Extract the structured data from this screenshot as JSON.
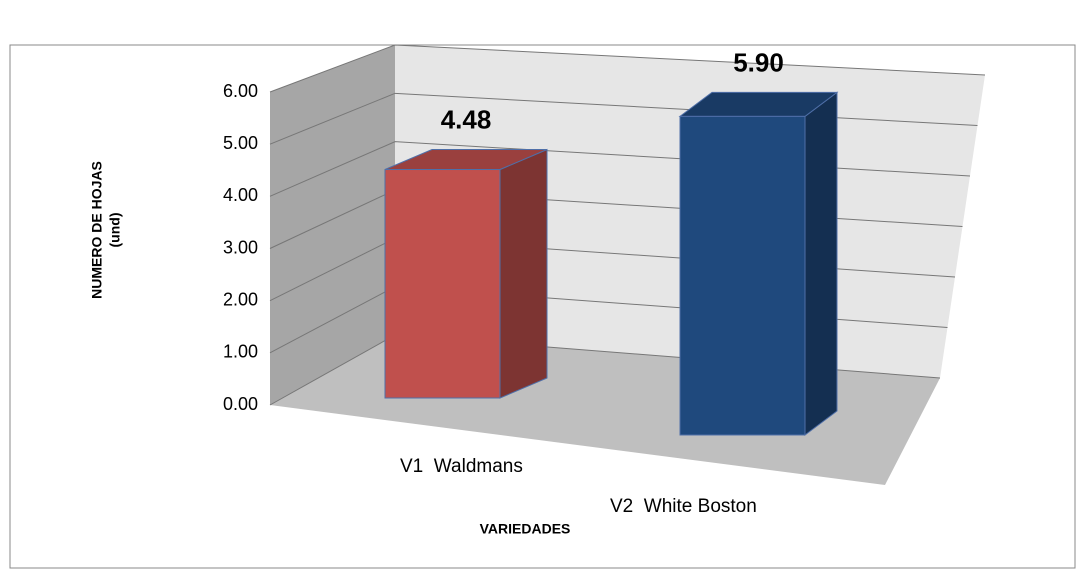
{
  "chart_data": {
    "type": "bar3d",
    "categories": [
      "V1  Waldmans",
      "V2  White Boston"
    ],
    "values": [
      4.48,
      5.9
    ],
    "value_labels": [
      "4.48",
      "5.90"
    ],
    "colors": [
      "#c0504d",
      "#1f497d"
    ],
    "ylim": [
      0,
      6
    ],
    "yticks": [
      {
        "value": 0,
        "label": "0.00"
      },
      {
        "value": 1,
        "label": "1.00"
      },
      {
        "value": 2,
        "label": "2.00"
      },
      {
        "value": 3,
        "label": "3.00"
      },
      {
        "value": 4,
        "label": "4.00"
      },
      {
        "value": 5,
        "label": "5.00"
      },
      {
        "value": 6,
        "label": "6.00"
      }
    ],
    "y_label": [
      "NUMERO DE HOJAS",
      "(und)"
    ],
    "x_label": "VARIEDADES",
    "grid": true
  }
}
